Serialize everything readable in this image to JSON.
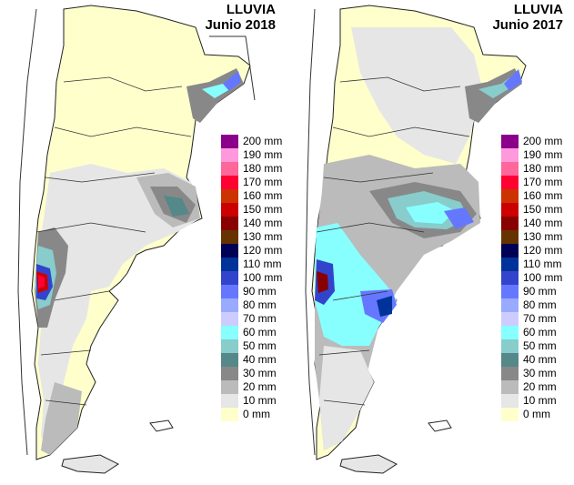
{
  "maps": [
    {
      "id": "left",
      "title_line1": "LLUVIA",
      "title_line2": "Junio 2018"
    },
    {
      "id": "right",
      "title_line1": "LLUVIA",
      "title_line2": "Junio 2017"
    }
  ],
  "legend": [
    {
      "label": "200 mm",
      "color": "#8b008b"
    },
    {
      "label": "190 mm",
      "color": "#ff99dd"
    },
    {
      "label": "180 mm",
      "color": "#ff6699"
    },
    {
      "label": "170 mm",
      "color": "#ff0033"
    },
    {
      "label": "160 mm",
      "color": "#cc3300"
    },
    {
      "label": "150 mm",
      "color": "#cc0000"
    },
    {
      "label": "140 mm",
      "color": "#880000"
    },
    {
      "label": "130 mm",
      "color": "#663300"
    },
    {
      "label": "120 mm",
      "color": "#000055"
    },
    {
      "label": "110 mm",
      "color": "#003399"
    },
    {
      "label": "100 mm",
      "color": "#3344cc"
    },
    {
      "label": "90 mm",
      "color": "#6677ff"
    },
    {
      "label": "80 mm",
      "color": "#99aaff"
    },
    {
      "label": "70 mm",
      "color": "#ccccff"
    },
    {
      "label": "60 mm",
      "color": "#88ffff"
    },
    {
      "label": "50 mm",
      "color": "#88cccc"
    },
    {
      "label": "40 mm",
      "color": "#558888"
    },
    {
      "label": "30 mm",
      "color": "#888888"
    },
    {
      "label": "20 mm",
      "color": "#bbbbbb"
    },
    {
      "label": "10 mm",
      "color": "#e6e6e6"
    },
    {
      "label": "0 mm",
      "color": "#ffffcc"
    }
  ]
}
